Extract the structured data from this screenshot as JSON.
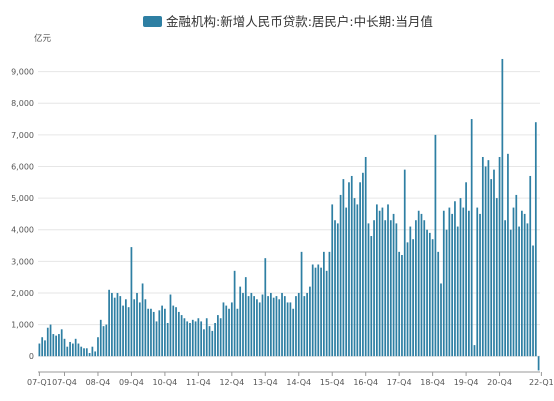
{
  "chart_data": {
    "type": "bar",
    "legend": {
      "label": "金融机构:新增人民币贷款:居民户:中长期:当月值",
      "placement": "top-center"
    },
    "ylabel": "亿元",
    "ylim": [
      -500,
      10000
    ],
    "yticks": [
      0,
      1000,
      2000,
      3000,
      4000,
      5000,
      6000,
      7000,
      8000,
      9000
    ],
    "ytick_labels": [
      "0",
      "1,000",
      "2,000",
      "3,000",
      "4,000",
      "5,000",
      "6,000",
      "7,000",
      "8,000",
      "9,000"
    ],
    "xtick_labels": [
      "07-Q1",
      "07-Q4",
      "08-Q4",
      "09-Q4",
      "10-Q4",
      "11-Q4",
      "12-Q4",
      "13-Q4",
      "14-Q4",
      "15-Q4",
      "16-Q4",
      "17-Q4",
      "18-Q4",
      "19-Q4",
      "20-Q4",
      "22-Q1"
    ],
    "xtick_months": [
      0,
      9,
      21,
      33,
      45,
      57,
      69,
      81,
      93,
      105,
      117,
      129,
      141,
      153,
      165,
      180
    ],
    "grid": true,
    "color": "#2e7fa3",
    "series": [
      {
        "values": [
          400,
          600,
          500,
          900,
          1000,
          700,
          650,
          700,
          850,
          550,
          300,
          450,
          400,
          550,
          400,
          300,
          250,
          250,
          100,
          300,
          150,
          600,
          1150,
          950,
          1000,
          2100,
          2000,
          1850,
          2000,
          1900,
          1600,
          1800,
          1550,
          3450,
          1800,
          2000,
          1700,
          2300,
          1800,
          1500,
          1500,
          1400,
          1100,
          1450,
          1600,
          1500,
          1050,
          1950,
          1600,
          1550,
          1400,
          1300,
          1200,
          1100,
          1050,
          1150,
          1100,
          1200,
          1100,
          850,
          1200,
          950,
          800,
          1050,
          1300,
          1200,
          1700,
          1600,
          1500,
          1700,
          2700,
          1500,
          2200,
          2000,
          2500,
          1900,
          2000,
          1900,
          1800,
          1700,
          1950,
          3100,
          1900,
          2000,
          1850,
          1900,
          1800,
          2000,
          1900,
          1700,
          1700,
          1500,
          1900,
          2000,
          3300,
          1900,
          2000,
          2200,
          2900,
          2800,
          2900,
          2800,
          3300,
          2700,
          3300,
          4800,
          4300,
          4200,
          5100,
          5600,
          4700,
          5500,
          5700,
          5000,
          4800,
          5500,
          5800,
          6300,
          4200,
          3800,
          4300,
          4800,
          4600,
          4700,
          4300,
          4800,
          4300,
          4500,
          4200,
          3300,
          3200,
          5900,
          3600,
          4100,
          3700,
          4300,
          4600,
          4500,
          4300,
          4000,
          3900,
          3700,
          7000,
          3300,
          2300,
          4600,
          4000,
          4700,
          4500,
          4900,
          4100,
          5000,
          4700,
          5500,
          4600,
          7500,
          350,
          4700,
          4500,
          6300,
          6000,
          6200,
          5600,
          5900,
          5000,
          6300,
          9400,
          4300,
          6400,
          4000,
          4700,
          5100,
          4100,
          4600,
          4500,
          4200,
          5700,
          3500,
          7400,
          -450
        ]
      }
    ]
  }
}
